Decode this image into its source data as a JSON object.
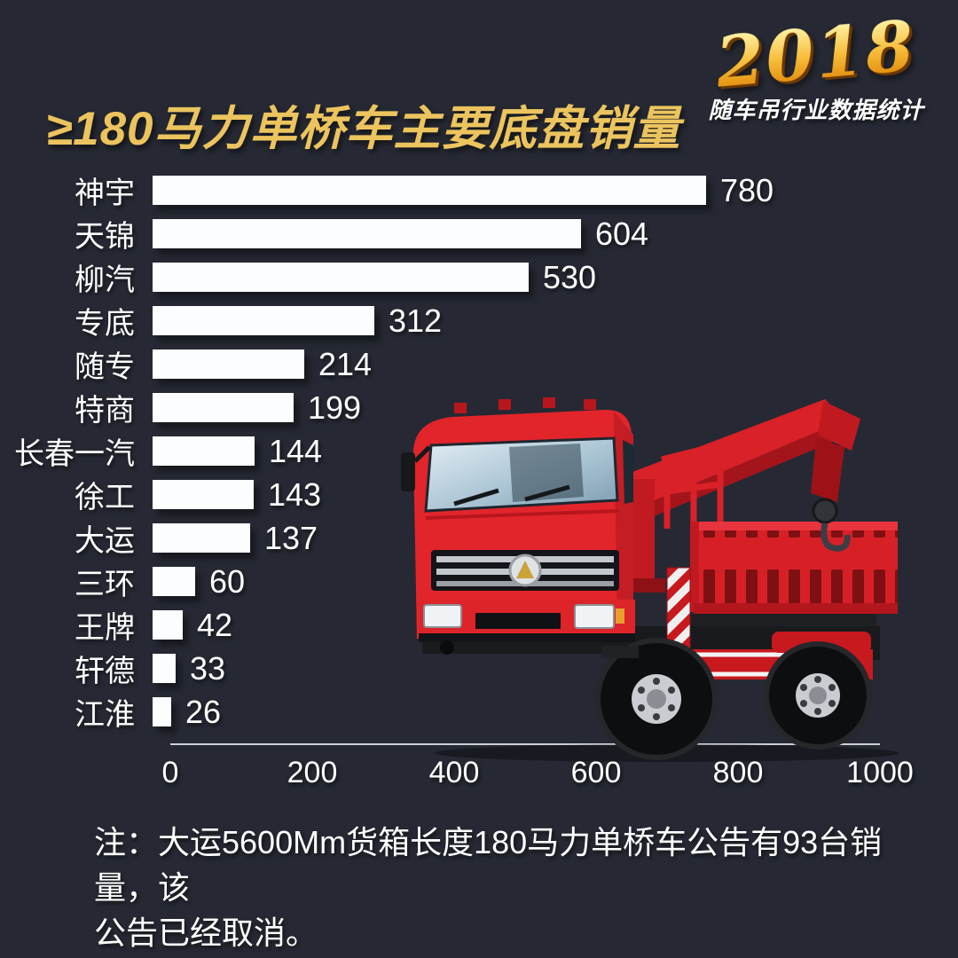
{
  "title": "≥180马力单桥车主要底盘销量",
  "badge": {
    "year": "2018",
    "subtitle": "随车吊行业数据统计"
  },
  "chart_data": {
    "type": "bar",
    "orientation": "horizontal",
    "title": "≥180马力单桥车主要底盘销量",
    "categories": [
      "神宇",
      "天锦",
      "柳汽",
      "专底",
      "随专",
      "特商",
      "长春一汽",
      "徐工",
      "大运",
      "三环",
      "王牌",
      "轩德",
      "江淮"
    ],
    "values": [
      780,
      604,
      530,
      312,
      214,
      199,
      144,
      143,
      137,
      60,
      42,
      33,
      26
    ],
    "xlim": [
      0,
      1000
    ],
    "x_ticks": [
      "0",
      "200",
      "400",
      "600",
      "800",
      "1000"
    ],
    "grid": false,
    "legend": false,
    "value_labels_position": "end-of-bar",
    "bar_color": "#ffffff",
    "label_color": "#ffffff"
  },
  "note": {
    "lines": [
      "注：大运5600Mm货箱长度180马力单桥车公告有93台销量，该",
      "公告已经取消。"
    ]
  },
  "icons": {
    "truck": "truck-mounted-crane-illustration"
  },
  "colors": {
    "background": "#262933",
    "title_gold": "#ecc45e",
    "badge_gold": "#f7bd3a",
    "bar_white": "#ffffff",
    "axis_line": "#ccd0d6",
    "truck_red": "#e2252b"
  }
}
